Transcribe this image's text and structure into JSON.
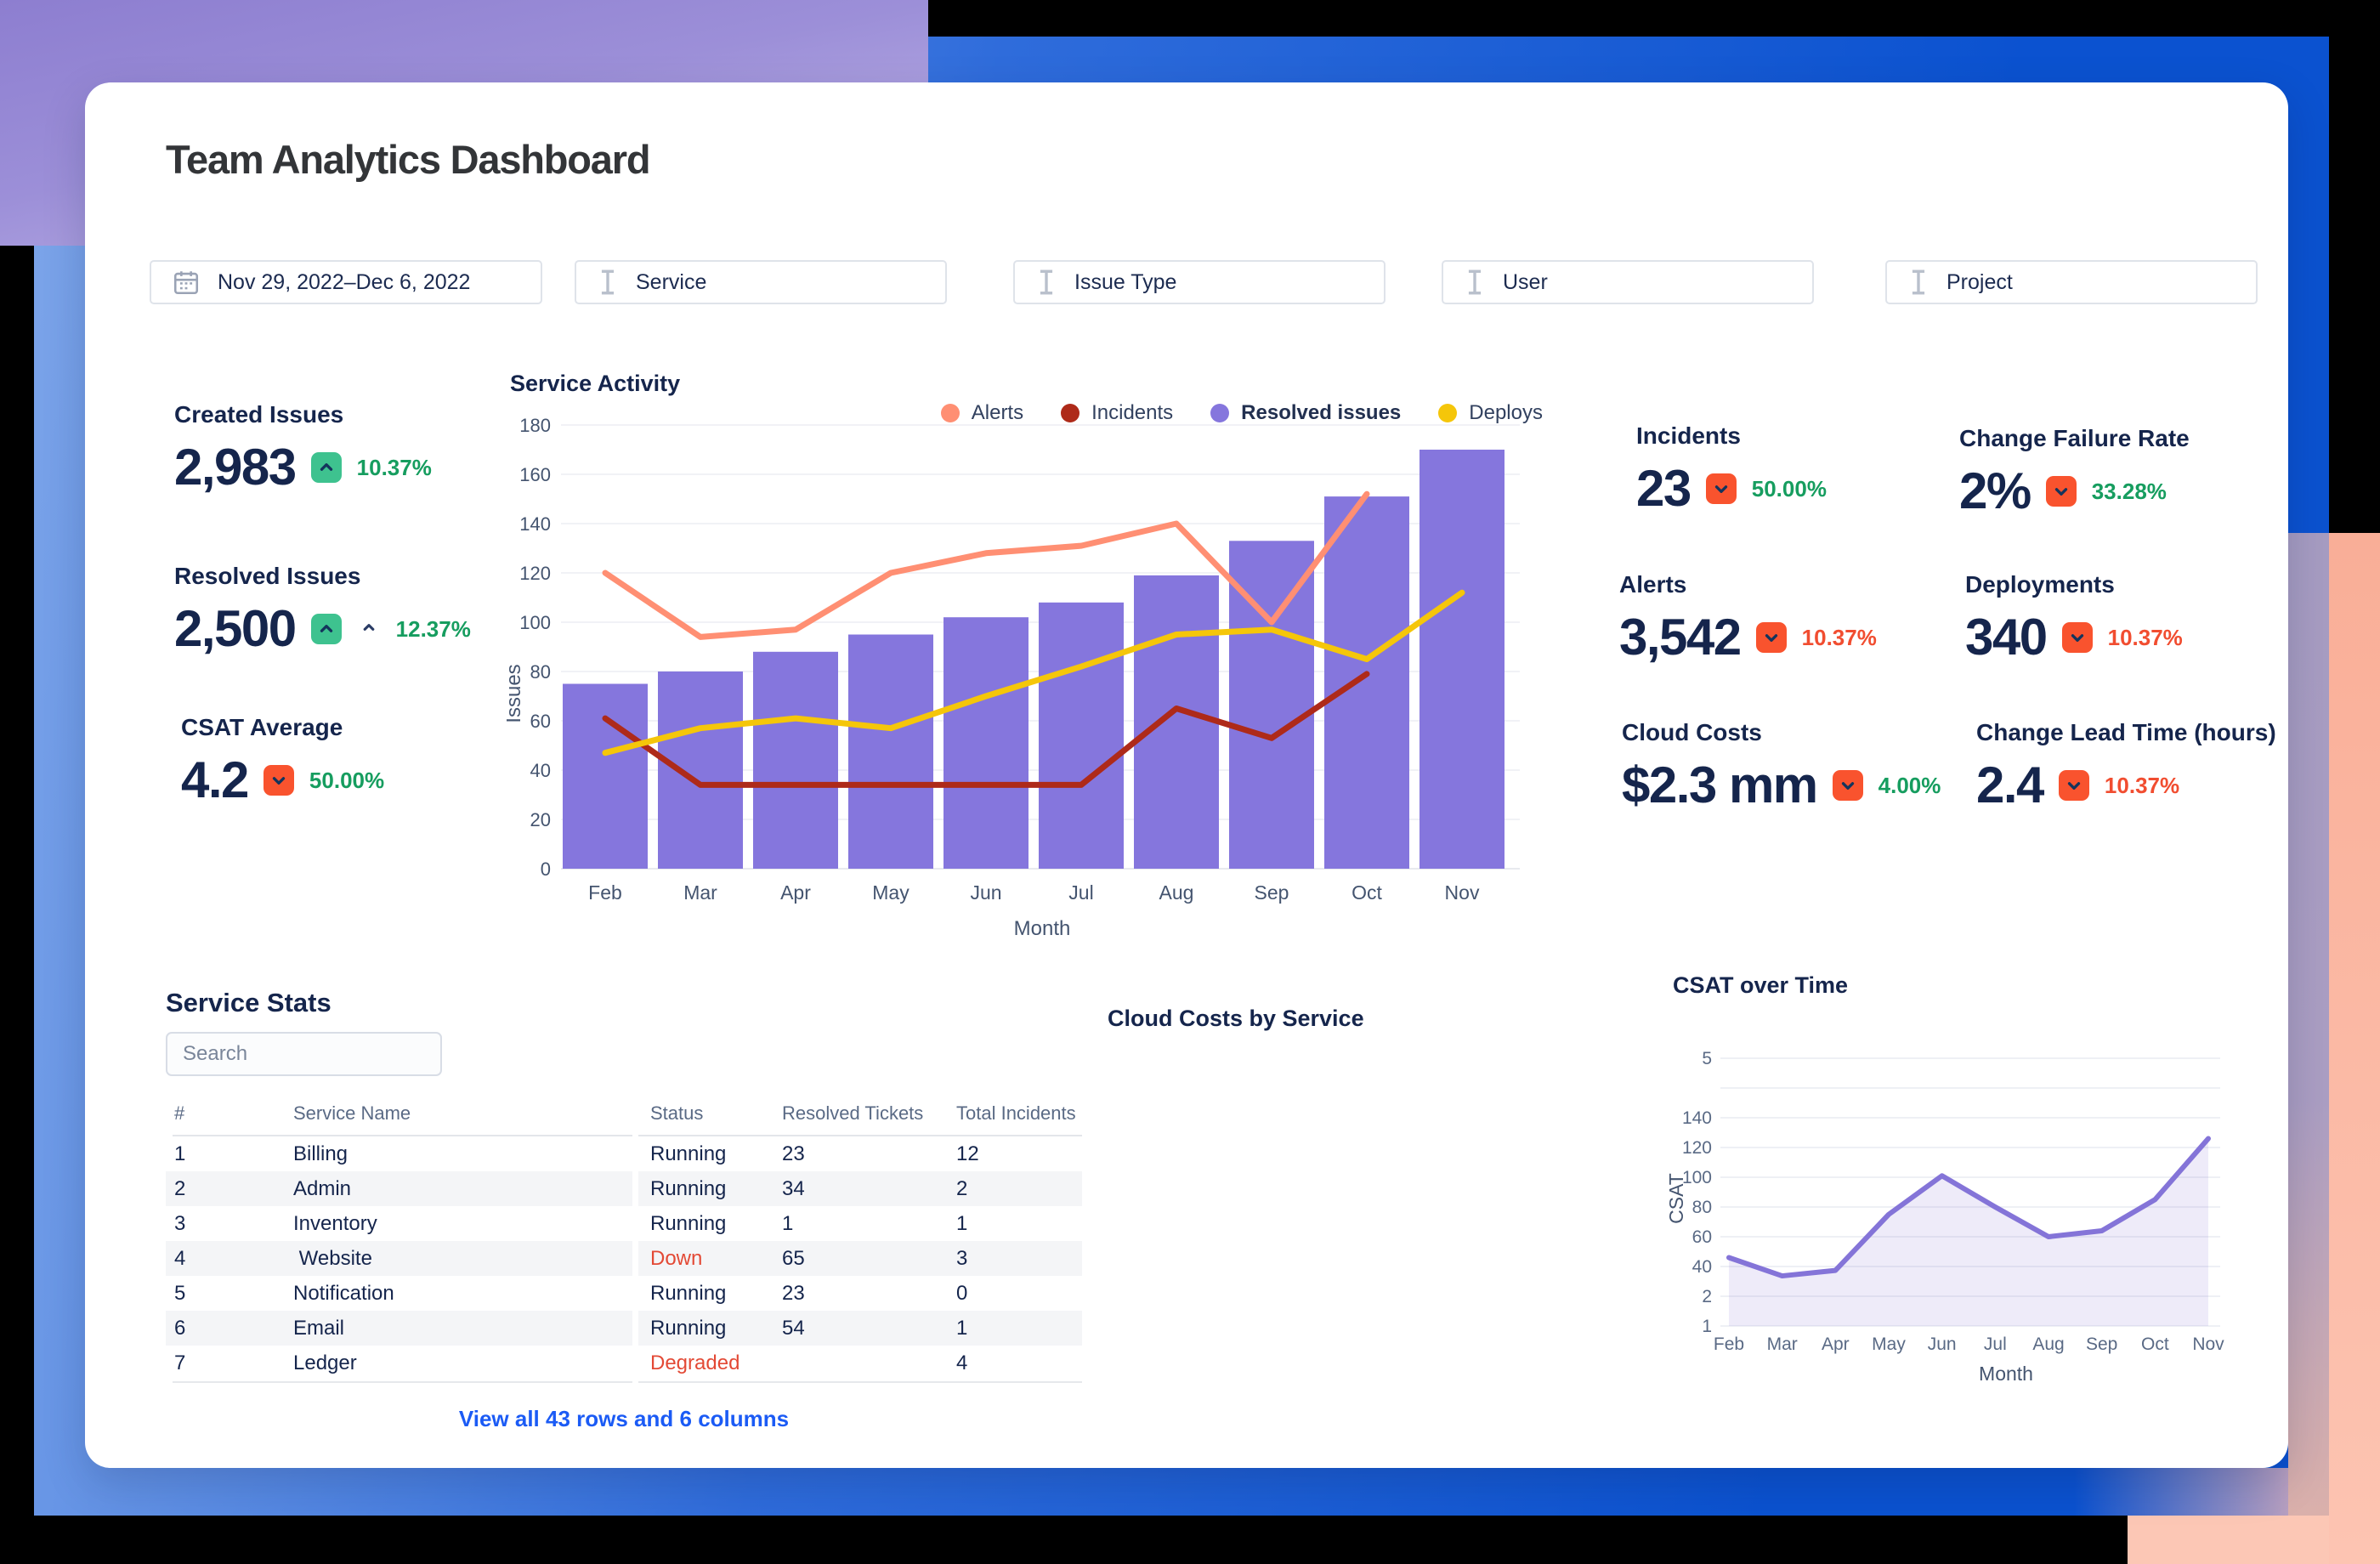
{
  "page": {
    "title": "Team Analytics Dashboard"
  },
  "filters": [
    {
      "label": "Nov 29, 2022–Dec 6, 2022",
      "icon": "calendar"
    },
    {
      "label": "Service",
      "icon": "ibeam"
    },
    {
      "label": "Issue Type",
      "icon": "ibeam"
    },
    {
      "label": "User",
      "icon": "ibeam"
    },
    {
      "label": "Project",
      "icon": "ibeam"
    }
  ],
  "kpis": {
    "created": {
      "label": "Created Issues",
      "value": "2,983",
      "delta": "10.37%",
      "direction": "up",
      "delta_color": "green"
    },
    "resolved": {
      "label": "Resolved Issues",
      "value": "2,500",
      "delta": "12.37%",
      "direction": "up",
      "delta_color": "green",
      "extra_caret": true
    },
    "csat": {
      "label": "CSAT Average",
      "value": "4.2",
      "delta": "50.00%",
      "direction": "down",
      "delta_color": "green"
    },
    "incidents": {
      "label": "Incidents",
      "value": "23",
      "delta": "50.00%",
      "direction": "down",
      "delta_color": "green"
    },
    "cfr": {
      "label": "Change Failure Rate",
      "value": "2%",
      "delta": "33.28%",
      "direction": "down",
      "delta_color": "green"
    },
    "alerts": {
      "label": "Alerts",
      "value": "3,542",
      "delta": "10.37%",
      "direction": "down",
      "delta_color": "red"
    },
    "deployments": {
      "label": "Deployments",
      "value": "340",
      "delta": "10.37%",
      "direction": "down",
      "delta_color": "red"
    },
    "cloud": {
      "label": "Cloud Costs",
      "value": "$2.3 mm",
      "delta": "4.00%",
      "direction": "down",
      "delta_color": "green"
    },
    "clt": {
      "label": "Change Lead Time (hours)",
      "value": "2.4",
      "delta": "10.37%",
      "direction": "down",
      "delta_color": "red"
    }
  },
  "chart_data": [
    {
      "id": "service_activity",
      "type": "bar",
      "title": "Service Activity",
      "categories": [
        "Feb",
        "Mar",
        "Apr",
        "May",
        "Jun",
        "Jul",
        "Aug",
        "Sep",
        "Oct",
        "Nov"
      ],
      "series": [
        {
          "name": "Alerts",
          "type": "line",
          "color": "#ff8f73",
          "values": [
            120,
            94,
            97,
            120,
            128,
            131,
            140,
            100,
            152,
            null
          ]
        },
        {
          "name": "Incidents",
          "type": "line",
          "color": "#ae2a19",
          "values": [
            61,
            34,
            34,
            34,
            34,
            34,
            65,
            53,
            79,
            null
          ]
        },
        {
          "name": "Resolved issues",
          "type": "bar",
          "color": "#8576dd",
          "values": [
            75,
            80,
            88,
            95,
            102,
            108,
            119,
            133,
            151,
            170
          ]
        },
        {
          "name": "Deploys",
          "type": "line",
          "color": "#f5c60a",
          "values": [
            47,
            57,
            61,
            57,
            70,
            82,
            95,
            97,
            85,
            112
          ]
        }
      ],
      "xlabel": "Month",
      "ylabel": "Issues",
      "ylim": [
        0,
        180
      ],
      "ytick_step": 20,
      "grid": true,
      "legend_position": "top-right"
    },
    {
      "id": "csat_over_time",
      "type": "area",
      "title": "CSAT over Time",
      "categories": [
        "Feb",
        "Mar",
        "Apr",
        "May",
        "Jun",
        "Jul",
        "Aug",
        "Sep",
        "Oct",
        "Nov"
      ],
      "series": [
        {
          "name": "CSAT",
          "type": "area",
          "color": "#8474d8",
          "fill": "rgba(132,116,216,0.14)",
          "values": [
            46,
            28,
            35,
            75,
            101,
            80,
            60,
            64,
            85,
            126
          ]
        }
      ],
      "xlabel": "Month",
      "ylabel": "CSAT",
      "ytick_labels_top_to_bottom": [
        "5",
        "",
        "140",
        "120",
        "100",
        "80",
        "60",
        "40",
        "2",
        "1"
      ],
      "grid": true
    }
  ],
  "cloud_costs_section": {
    "title": "Cloud Costs by Service"
  },
  "service_stats": {
    "title": "Service Stats",
    "search_placeholder": "Search",
    "columns": {
      "num": "#",
      "name": "Service Name",
      "status": "Status",
      "resolved": "Resolved Tickets",
      "total": "Total Incidents"
    },
    "rows": [
      {
        "num": "1",
        "name": "Billing",
        "status": "Running",
        "resolved": "23",
        "total": "12"
      },
      {
        "num": "2",
        "name": "Admin",
        "status": "Running",
        "resolved": "34",
        "total": "2"
      },
      {
        "num": "3",
        "name": "Inventory",
        "status": "Running",
        "resolved": "1",
        "total": "1"
      },
      {
        "num": "4",
        "name": " Website",
        "status": "Down",
        "resolved": "65",
        "total": "3"
      },
      {
        "num": "5",
        "name": "Notification",
        "status": "Running",
        "resolved": "23",
        "total": "0"
      },
      {
        "num": "6",
        "name": "Email",
        "status": "Running",
        "resolved": "54",
        "total": "1"
      },
      {
        "num": "7",
        "name": "Ledger",
        "status": "Degraded",
        "resolved": "",
        "total": "4"
      }
    ],
    "footer_link": "View all 43 rows and 6 columns"
  },
  "colors": {
    "accent_purple": "#8576dd",
    "alerts_salmon": "#ff8f73",
    "incidents_dark_red": "#ae2a19",
    "deploys_yellow": "#f5c60a",
    "badge_up_green": "#3ec28f",
    "badge_down_red": "#f9532e",
    "delta_green": "#169d5f",
    "delta_red": "#f14d30",
    "navy_text": "#15254c",
    "link_blue": "#1b5bf5",
    "status_bad_red": "#e34935"
  }
}
